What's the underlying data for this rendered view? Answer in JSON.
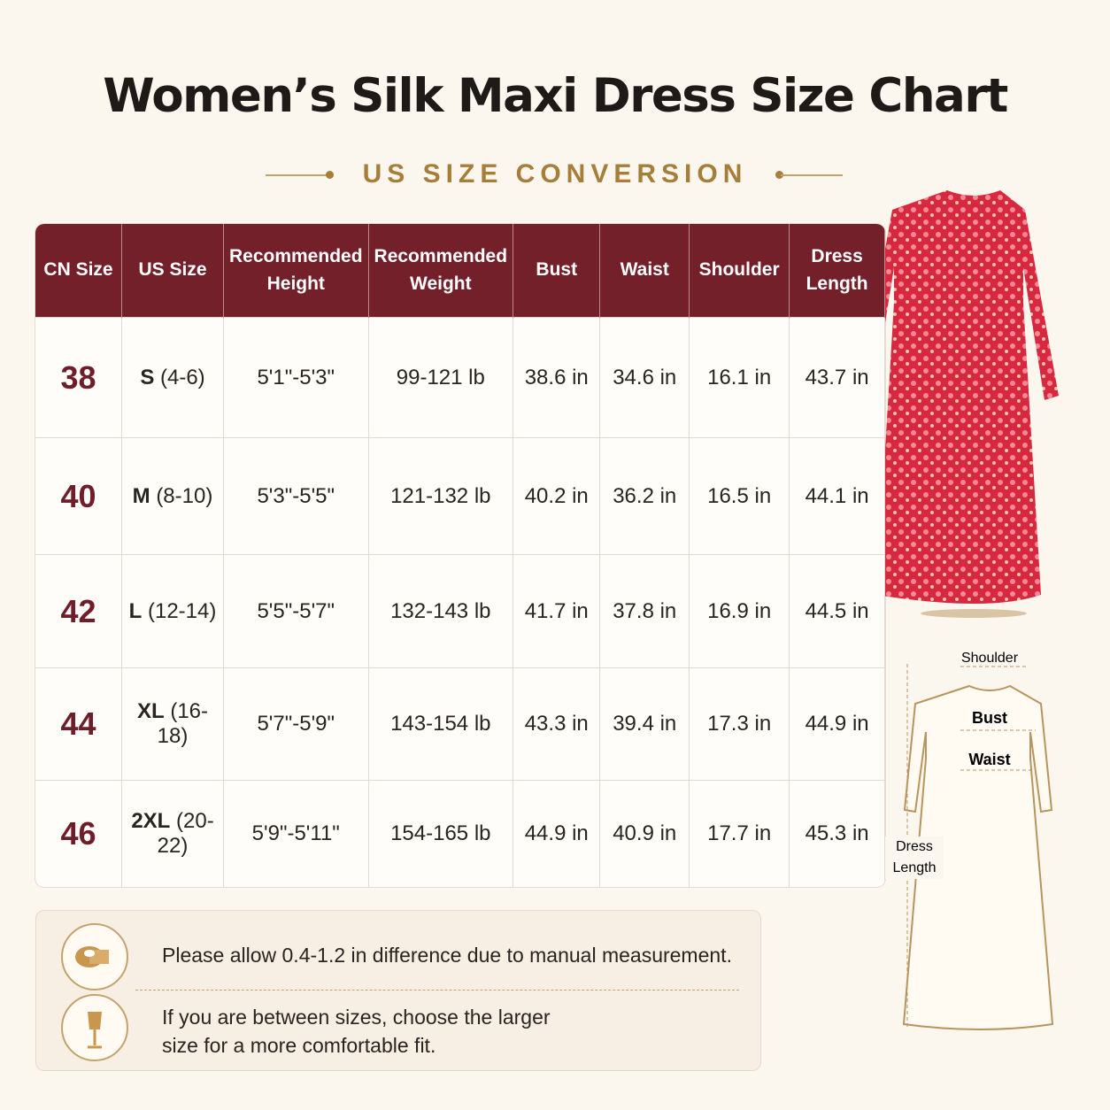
{
  "header": {
    "title": "Women’s Silk Maxi Dress Size Chart",
    "subtitle": "US SIZE CONVERSION"
  },
  "table": {
    "headers": [
      "CN Size",
      "US Size",
      "Recommended Height",
      "Recommended Weight",
      "Bust",
      "Waist",
      "Shoulder",
      "Dress Length"
    ],
    "rows": [
      [
        "38",
        [
          "S",
          "(4-6)"
        ],
        "5'1\"-5'3\"",
        "99-121 lb",
        "38.6 in",
        "34.6 in",
        "16.1 in",
        "43.7 in"
      ],
      [
        "40",
        [
          "M",
          "(8-10)"
        ],
        "5'3\"-5'5\"",
        "121-132 lb",
        "40.2 in",
        "36.2 in",
        "16.5 in",
        "44.1 in"
      ],
      [
        "42",
        [
          "L",
          "(12-14)"
        ],
        "5'5\"-5'7\"",
        "132-143 lb",
        "41.7 in",
        "37.8 in",
        "16.9 in",
        "44.5 in"
      ],
      [
        "44",
        [
          "XL",
          "(16-18)"
        ],
        "5'7\"-5'9\"",
        "143-154 lb",
        "43.3 in",
        "39.4 in",
        "17.3 in",
        "44.9 in"
      ],
      [
        "46",
        [
          "2XL",
          "(20-22)"
        ],
        "5'9\"-5'11\"",
        "154-165 lb",
        "44.9 in",
        "40.9 in",
        "17.7 in",
        "45.3 in"
      ]
    ]
  },
  "notes": [
    "Please allow 0.4-1.2 in difference due to manual measurement.",
    "If you are between sizes, choose the larger size for a more comfortable fit."
  ],
  "diagram": {
    "labels": [
      "Shoulder",
      "Bust",
      "Waist",
      "Dress Length"
    ]
  }
}
